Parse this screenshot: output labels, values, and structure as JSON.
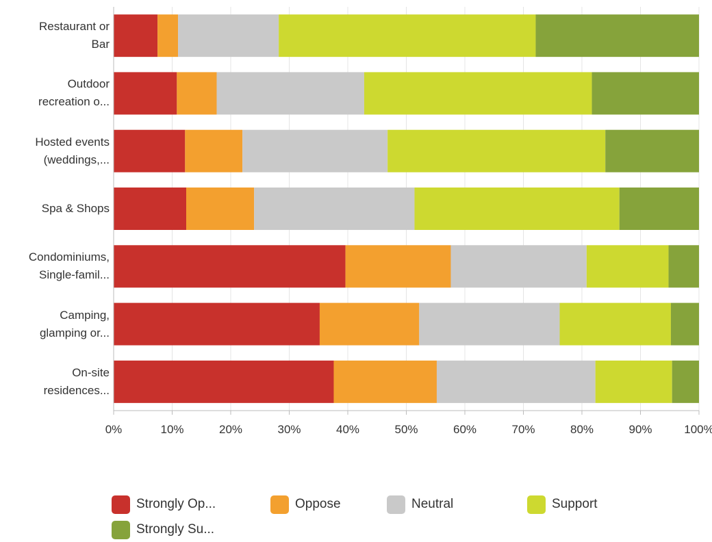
{
  "chart_data": {
    "type": "bar",
    "orientation": "horizontal",
    "stacked": "percent",
    "categories": [
      [
        "Restaurant or",
        "Bar"
      ],
      [
        "Outdoor",
        "recreation o..."
      ],
      [
        "Hosted events",
        "(weddings,..."
      ],
      [
        "Spa & Shops"
      ],
      [
        "Condominiums,",
        "Single-famil..."
      ],
      [
        "Camping,",
        "glamping or..."
      ],
      [
        "On-site",
        "residences..."
      ]
    ],
    "series": [
      {
        "name": "Strongly Op...",
        "color": "#c8312c",
        "values": [
          7.5,
          10.8,
          12.2,
          12.4,
          39.6,
          35.2,
          37.6
        ]
      },
      {
        "name": "Oppose",
        "color": "#f3a02f",
        "values": [
          3.5,
          6.8,
          9.8,
          11.6,
          18.0,
          17.0,
          17.6
        ]
      },
      {
        "name": "Neutral",
        "color": "#c9c9c9",
        "values": [
          17.2,
          25.2,
          24.8,
          27.4,
          23.2,
          24.0,
          27.1
        ]
      },
      {
        "name": "Support",
        "color": "#cdd930",
        "values": [
          43.9,
          38.9,
          37.2,
          35.0,
          14.0,
          19.0,
          13.1
        ]
      },
      {
        "name": "Strongly Su...",
        "color": "#86a33b",
        "values": [
          27.9,
          18.3,
          16.0,
          13.6,
          5.2,
          4.8,
          4.6
        ]
      }
    ],
    "xlim": [
      0,
      100
    ],
    "xticks": [
      "0%",
      "10%",
      "20%",
      "30%",
      "40%",
      "50%",
      "60%",
      "70%",
      "80%",
      "90%",
      "100%"
    ],
    "grid": true,
    "legend_position": "bottom"
  }
}
